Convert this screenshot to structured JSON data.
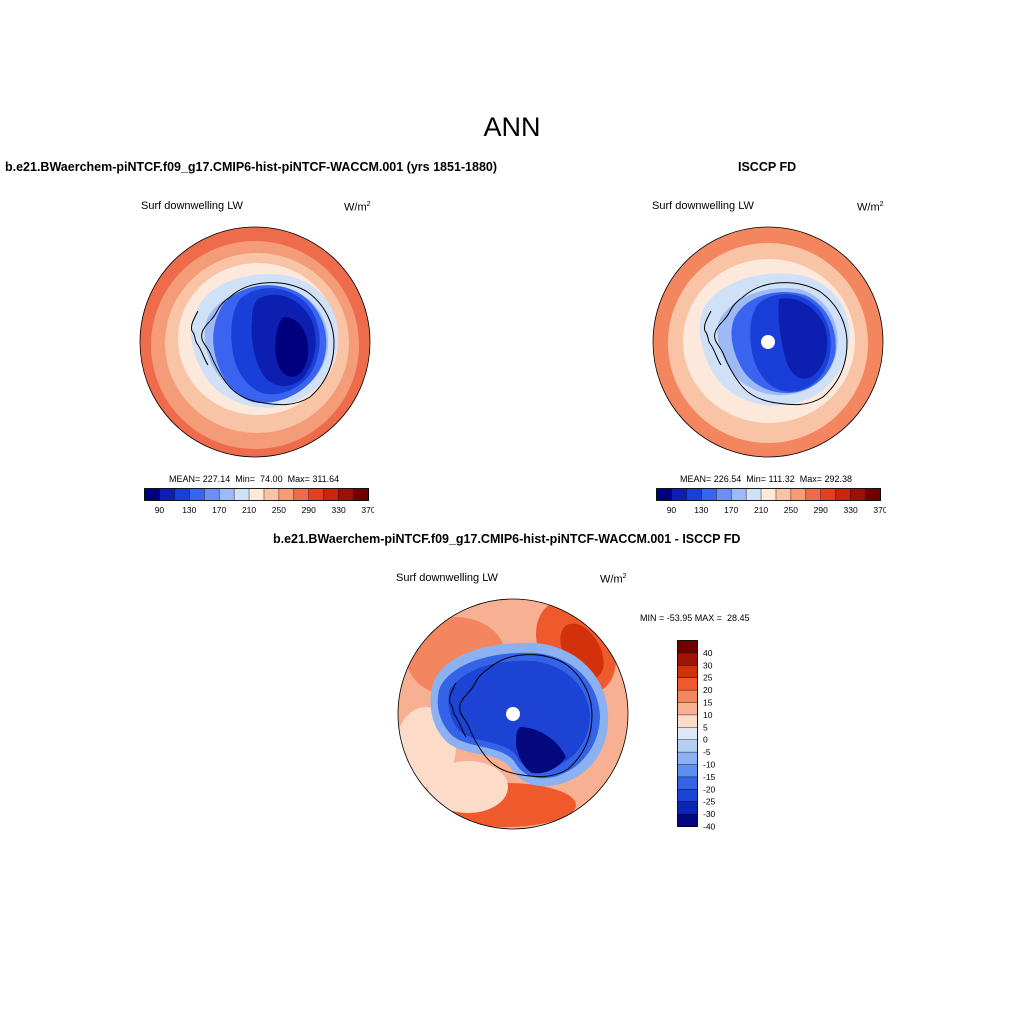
{
  "figure": {
    "title": "ANN"
  },
  "panels": {
    "model": {
      "title": "b.e21.BWaerchem-piNTCF.f09_g17.CMIP6-hist-piNTCF-WACCM.001 (yrs 1851-1880)",
      "variable": "Surf downwelling LW",
      "units_base": "W/m",
      "units_exp": "2",
      "stats": "MEAN= 227.14  Min=  74.00  Max= 311.64",
      "colorbar_labels": [
        "90",
        "130",
        "170",
        "210",
        "250",
        "290",
        "330",
        "370"
      ]
    },
    "obs": {
      "title": "ISCCP FD",
      "variable": "Surf downwelling LW",
      "units_base": "W/m",
      "units_exp": "2",
      "stats": "MEAN= 226.54  Min= 111.32  Max= 292.38",
      "colorbar_labels": [
        "90",
        "130",
        "170",
        "210",
        "250",
        "290",
        "330",
        "370"
      ]
    },
    "diff": {
      "title": "b.e21.BWaerchem-piNTCF.f09_g17.CMIP6-hist-piNTCF-WACCM.001 - ISCCP FD",
      "variable": "Surf downwelling LW",
      "units_base": "W/m",
      "units_exp": "2",
      "stats": "MIN = -53.95 MAX =  28.45",
      "colorbar_labels": [
        "40",
        "30",
        "25",
        "20",
        "15",
        "10",
        "5",
        "0",
        "-5",
        "-10",
        "-15",
        "-20",
        "-25",
        "-30",
        "-40"
      ]
    }
  },
  "colors": {
    "abs_scale": [
      "#00007f",
      "#0d1fb0",
      "#1a3fd8",
      "#3a64f0",
      "#6a8ff5",
      "#9dbaf5",
      "#cfe0f7",
      "#fde9dc",
      "#f9c3a6",
      "#f49b78",
      "#ee6c4c",
      "#e2411f",
      "#c7260e",
      "#9a1106",
      "#700000"
    ],
    "diff_scale": [
      "#700000",
      "#a01406",
      "#d3300c",
      "#ee5a2c",
      "#f4865f",
      "#f8b092",
      "#fcdcc8",
      "#dde9f6",
      "#b4cff3",
      "#8bb1f1",
      "#5e8df0",
      "#3463e7",
      "#1c43d4",
      "#0b25b5",
      "#04087f"
    ]
  }
}
